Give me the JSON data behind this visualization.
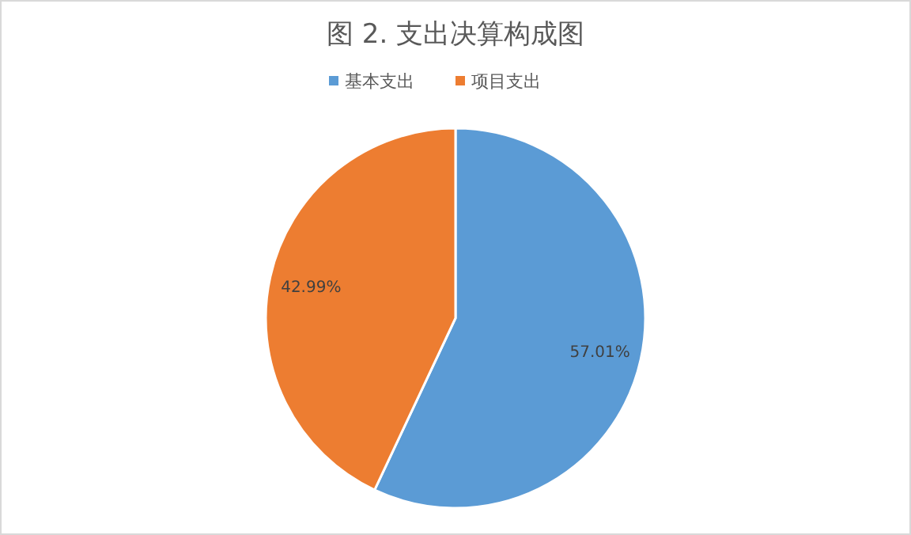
{
  "chart_data": {
    "type": "pie",
    "title": "图 2.  支出决算构成图",
    "categories": [
      "基本支出",
      "项目支出"
    ],
    "values": [
      57.01,
      42.99
    ],
    "colors": [
      "#5b9bd5",
      "#ed7d31"
    ],
    "value_labels": [
      "57.01%",
      "42.99%"
    ],
    "legend": "top"
  }
}
